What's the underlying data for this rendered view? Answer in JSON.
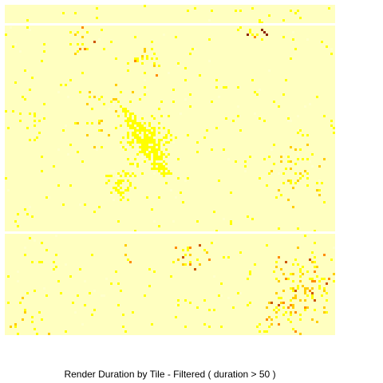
{
  "chart_data": {
    "type": "heatmap",
    "title": "Render  Duration  by Tile - Filtered ( duration > 50 )",
    "xlabel": "",
    "ylabel": "",
    "legend": "none",
    "grid": false,
    "color_scale": [
      "#ffffcc",
      "#ffff00",
      "#ffcc00",
      "#ff8c00",
      "#cc5500",
      "#8b2500"
    ],
    "background_color": "#ffffc0",
    "gap_color": "#ffffff"
  }
}
